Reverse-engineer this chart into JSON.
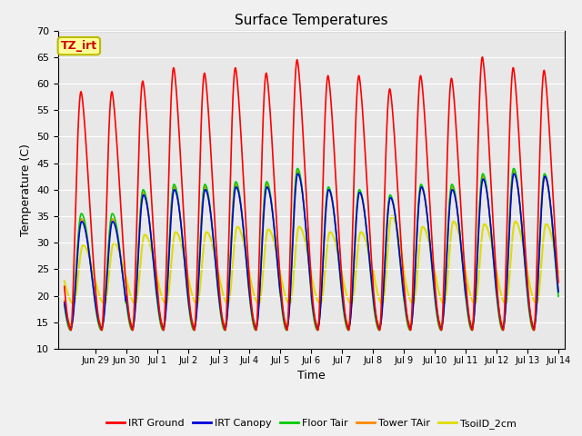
{
  "title": "Surface Temperatures",
  "xlabel": "Time",
  "ylabel": "Temperature (C)",
  "ylim": [
    10,
    70
  ],
  "yticks": [
    10,
    15,
    20,
    25,
    30,
    35,
    40,
    45,
    50,
    55,
    60,
    65,
    70
  ],
  "annotation_text": "TZ_irt",
  "annotation_bg": "#ffff99",
  "annotation_border": "#bbbb00",
  "annotation_text_color": "#cc0000",
  "fig_bg_color": "#f0f0f0",
  "plot_bg_color": "#e8e8e8",
  "series": {
    "IRT Ground": {
      "color": "#ff0000",
      "lw": 1.2
    },
    "IRT Canopy": {
      "color": "#0000dd",
      "lw": 1.2
    },
    "Floor Tair": {
      "color": "#00cc00",
      "lw": 1.2
    },
    "Tower TAir": {
      "color": "#ff8800",
      "lw": 1.2
    },
    "TsoilD_2cm": {
      "color": "#dddd00",
      "lw": 1.5
    }
  },
  "tick_labels": [
    "Jun",
    "29Jun 30",
    "Jul 1",
    "Jul 2",
    "Jul 3",
    "Jul 4",
    "Jul 5",
    "Jul 6",
    "Jul 7",
    "Jul 8",
    "Jul 9",
    "Jul 10",
    "Jul 11",
    "Jul 12",
    "Jul 13",
    "Jul 14"
  ],
  "n_days": 16,
  "points_per_day": 96,
  "irt_ground_peaks": [
    58.5,
    58.5,
    60.5,
    63.0,
    62.0,
    63.0,
    62.0,
    64.5,
    61.5,
    61.5,
    59.0,
    61.5,
    61.0,
    65.0,
    63.0,
    62.5
  ],
  "irt_ground_min": 13.5,
  "canopy_peaks": [
    34.0,
    34.0,
    39.0,
    40.0,
    40.0,
    40.5,
    40.5,
    43.0,
    40.0,
    39.5,
    38.5,
    40.5,
    40.0,
    42.0,
    43.0,
    42.5
  ],
  "canopy_min": 14.0,
  "floor_peaks": [
    35.5,
    35.5,
    40.0,
    41.0,
    41.0,
    41.5,
    41.5,
    44.0,
    40.5,
    40.0,
    39.0,
    41.0,
    41.0,
    43.0,
    44.0,
    43.0
  ],
  "floor_min": 13.5,
  "tower_peaks": [
    34.5,
    34.5,
    39.5,
    40.5,
    40.5,
    41.0,
    41.0,
    43.5,
    40.0,
    39.5,
    38.5,
    40.5,
    40.5,
    42.5,
    43.5,
    42.5
  ],
  "tower_min": 14.5,
  "soil_peaks": [
    29.5,
    30.0,
    31.5,
    32.0,
    32.0,
    33.0,
    32.5,
    33.0,
    32.0,
    32.0,
    35.0,
    33.0,
    34.0,
    33.5,
    34.0,
    33.5
  ],
  "soil_min": 18.5
}
